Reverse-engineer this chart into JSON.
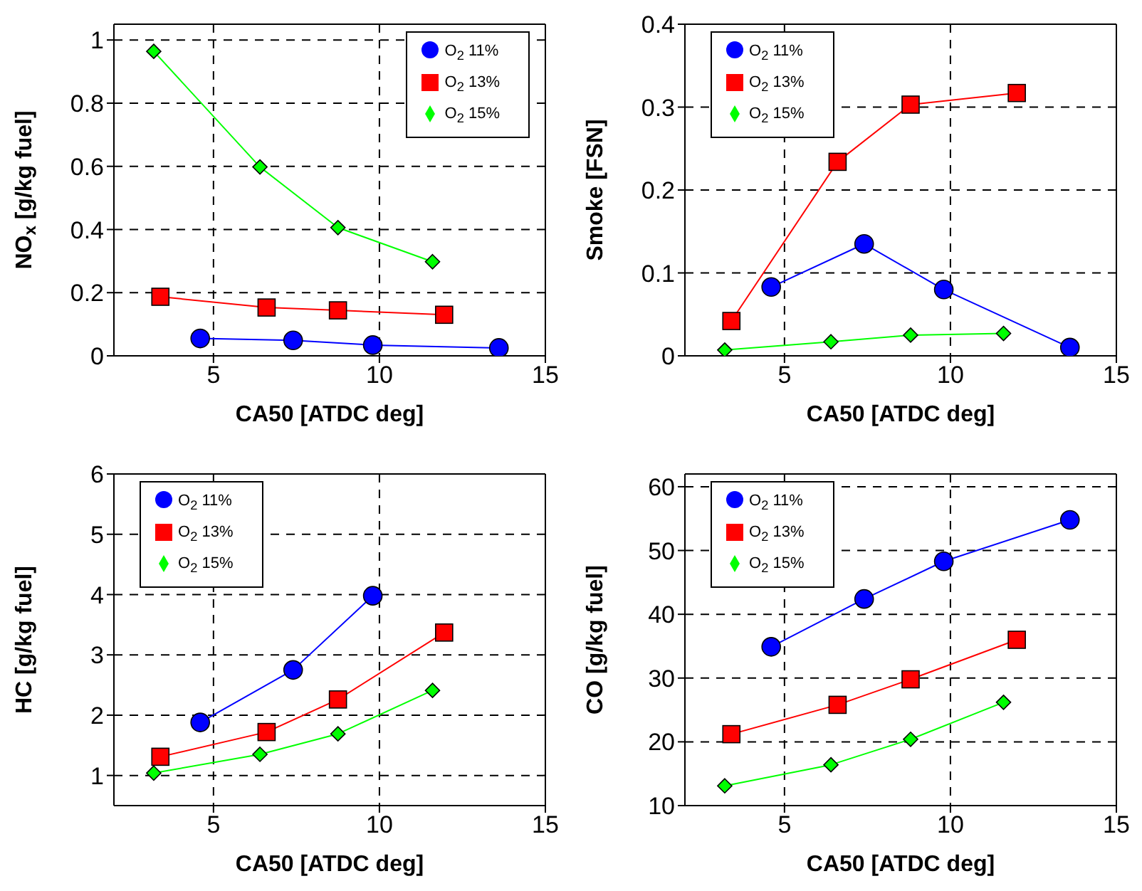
{
  "chart_data": [
    {
      "type": "line",
      "xlabel": "CA50 [ATDC deg]",
      "ylabel": "NO$_{x}$ [g/kg fuel]",
      "xlim": [
        2,
        15
      ],
      "xticks": [
        5,
        10,
        15
      ],
      "ylim": [
        0,
        1.05
      ],
      "yticks": [
        0,
        0.2,
        0.4,
        0.6,
        0.8,
        1
      ],
      "grid": true,
      "legend": "top right",
      "series": [
        {
          "name": "O$_{2}$ 11%",
          "color": "#0000ff",
          "marker": "circle",
          "x": [
            4.6,
            7.4,
            9.8,
            13.6
          ],
          "values": [
            0.055,
            0.049,
            0.034,
            0.025
          ]
        },
        {
          "name": "O$_{2}$ 13%",
          "color": "#ff0000",
          "marker": "square",
          "x": [
            3.4,
            6.6,
            8.75,
            11.95
          ],
          "values": [
            0.187,
            0.153,
            0.144,
            0.13
          ]
        },
        {
          "name": "O$_{2}$ 15%",
          "color": "#00ff00",
          "marker": "diamond",
          "x": [
            3.2,
            6.4,
            8.75,
            11.6
          ],
          "values": [
            0.964,
            0.598,
            0.406,
            0.298
          ]
        }
      ]
    },
    {
      "type": "line",
      "xlabel": "CA50 [ATDC deg]",
      "ylabel": "Smoke [FSN]",
      "xlim": [
        2,
        15
      ],
      "xticks": [
        5,
        10,
        15
      ],
      "ylim": [
        0,
        0.4
      ],
      "yticks": [
        0,
        0.1,
        0.2,
        0.3,
        0.4
      ],
      "grid": true,
      "legend": "top left",
      "series": [
        {
          "name": "O$_{2}$ 11%",
          "color": "#0000ff",
          "marker": "circle",
          "x": [
            4.6,
            7.4,
            9.8,
            13.6
          ],
          "values": [
            0.083,
            0.135,
            0.08,
            0.01
          ]
        },
        {
          "name": "O$_{2}$ 13%",
          "color": "#ff0000",
          "marker": "square",
          "x": [
            3.4,
            6.6,
            8.8,
            12.0
          ],
          "values": [
            0.042,
            0.234,
            0.303,
            0.317
          ]
        },
        {
          "name": "O$_{2}$ 15%",
          "color": "#00ff00",
          "marker": "diamond",
          "x": [
            3.2,
            6.4,
            8.8,
            11.6
          ],
          "values": [
            0.007,
            0.017,
            0.025,
            0.027
          ]
        }
      ]
    },
    {
      "type": "line",
      "xlabel": "CA50 [ATDC deg]",
      "ylabel": "HC [g/kg fuel]",
      "xlim": [
        2,
        15
      ],
      "xticks": [
        5,
        10,
        15
      ],
      "ylim": [
        0.5,
        6
      ],
      "yticks": [
        1,
        2,
        3,
        4,
        5,
        6
      ],
      "grid": true,
      "legend": "top left",
      "series": [
        {
          "name": "O$_{2}$ 11%",
          "color": "#0000ff",
          "marker": "circle",
          "x": [
            4.6,
            7.4,
            9.8
          ],
          "values": [
            1.88,
            2.75,
            3.98
          ]
        },
        {
          "name": "O$_{2}$ 13%",
          "color": "#ff0000",
          "marker": "square",
          "x": [
            3.4,
            6.6,
            8.75,
            11.95
          ],
          "values": [
            1.31,
            1.72,
            2.26,
            3.37
          ]
        },
        {
          "name": "O$_{2}$ 15%",
          "color": "#00ff00",
          "marker": "diamond",
          "x": [
            3.2,
            6.4,
            8.75,
            11.6
          ],
          "values": [
            1.04,
            1.35,
            1.69,
            2.41
          ]
        }
      ]
    },
    {
      "type": "line",
      "xlabel": "CA50 [ATDC deg]",
      "ylabel": "CO [g/kg fuel]",
      "xlim": [
        2,
        15
      ],
      "xticks": [
        5,
        10,
        15
      ],
      "ylim": [
        10,
        62
      ],
      "yticks": [
        10,
        20,
        30,
        40,
        50,
        60
      ],
      "grid": true,
      "legend": "top left",
      "series": [
        {
          "name": "O$_{2}$ 11%",
          "color": "#0000ff",
          "marker": "circle",
          "x": [
            4.6,
            7.4,
            9.8,
            13.6
          ],
          "values": [
            34.9,
            42.4,
            48.3,
            54.8
          ]
        },
        {
          "name": "O$_{2}$ 13%",
          "color": "#ff0000",
          "marker": "square",
          "x": [
            3.4,
            6.6,
            8.8,
            12.0
          ],
          "values": [
            21.2,
            25.8,
            29.8,
            36.0
          ]
        },
        {
          "name": "O$_{2}$ 15%",
          "color": "#00ff00",
          "marker": "diamond",
          "x": [
            3.2,
            6.4,
            8.8,
            11.6
          ],
          "values": [
            13.1,
            16.4,
            20.4,
            26.2
          ]
        }
      ]
    }
  ]
}
